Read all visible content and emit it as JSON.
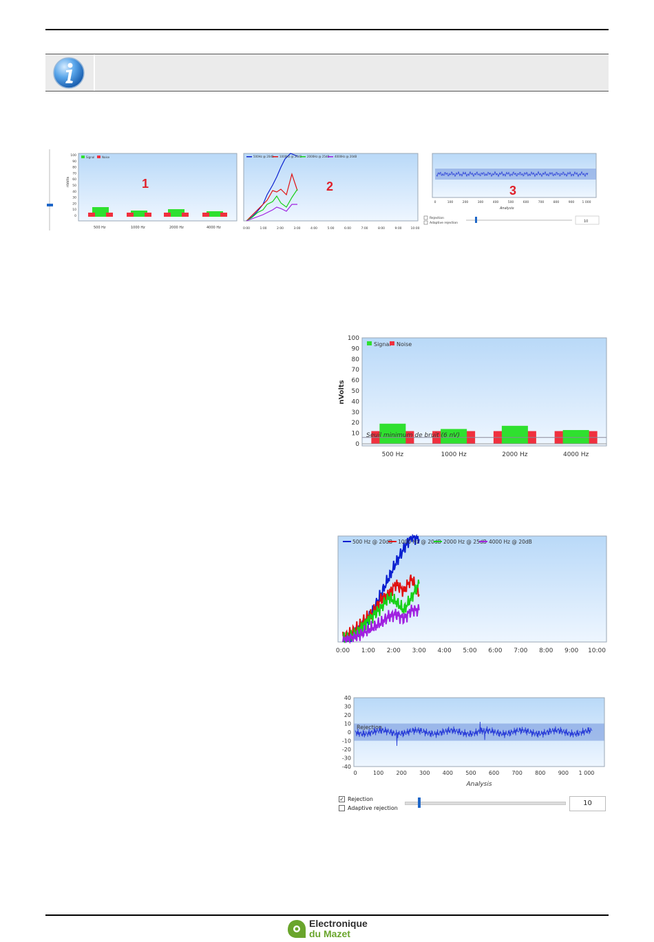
{
  "logo": {
    "line1": "Electronique",
    "line2": "du Mazet",
    "brand_color": "#6aa52c",
    "icon": "ear-wave-logo-icon"
  },
  "info_note": {
    "icon": "info-icon",
    "text": ""
  },
  "overview_labels": {
    "panel1": "1",
    "panel2": "2",
    "panel3": "3",
    "color": "#e0202a"
  },
  "bar_chart": {
    "type": "bar",
    "ylabel": "nVolts",
    "ylim": [
      0,
      100
    ],
    "yticks": [
      "0",
      "10",
      "20",
      "30",
      "40",
      "50",
      "60",
      "70",
      "80",
      "90",
      "100"
    ],
    "categories": [
      "500 Hz",
      "1000 Hz",
      "2000 Hz",
      "4000 Hz"
    ],
    "series": [
      {
        "name": "Signal",
        "color": "#2fe02f",
        "values": [
          19,
          14,
          17,
          13
        ]
      },
      {
        "name": "Noise",
        "color": "#f0303e",
        "values": [
          12,
          12,
          12,
          12
        ]
      }
    ],
    "threshold": {
      "label": "Seuil minimum de bruit (6 nV)",
      "value": 6
    },
    "legend": "top-left"
  },
  "line_chart": {
    "type": "line",
    "xticks": [
      "0:00",
      "1:00",
      "2:00",
      "3:00",
      "4:00",
      "5:00",
      "6:00",
      "7:00",
      "8:00",
      "9:00",
      "10:00"
    ],
    "xlim": [
      0,
      10
    ],
    "ylim": [
      0,
      100
    ],
    "legend": "top-left",
    "series": [
      {
        "name": "500 Hz @ 20dB",
        "color": "#0a1fd0",
        "points": [
          [
            0,
            3
          ],
          [
            0.3,
            6
          ],
          [
            0.6,
            12
          ],
          [
            0.9,
            18
          ],
          [
            1.2,
            30
          ],
          [
            1.5,
            45
          ],
          [
            1.8,
            60
          ],
          [
            2.1,
            75
          ],
          [
            2.4,
            88
          ],
          [
            2.7,
            100
          ],
          [
            3.0,
            97
          ]
        ]
      },
      {
        "name": "1000 Hz @ 20dB",
        "color": "#e01010",
        "points": [
          [
            0,
            4
          ],
          [
            0.3,
            8
          ],
          [
            0.6,
            14
          ],
          [
            0.9,
            22
          ],
          [
            1.2,
            28
          ],
          [
            1.5,
            40
          ],
          [
            1.8,
            45
          ],
          [
            2.1,
            55
          ],
          [
            2.4,
            48
          ],
          [
            2.7,
            60
          ],
          [
            3.0,
            45
          ]
        ]
      },
      {
        "name": "2000 Hz @ 25dB",
        "color": "#18d018",
        "points": [
          [
            0,
            2
          ],
          [
            0.3,
            5
          ],
          [
            0.6,
            10
          ],
          [
            0.9,
            18
          ],
          [
            1.2,
            25
          ],
          [
            1.5,
            32
          ],
          [
            1.8,
            42
          ],
          [
            2.1,
            38
          ],
          [
            2.4,
            30
          ],
          [
            2.7,
            42
          ],
          [
            3.0,
            55
          ]
        ]
      },
      {
        "name": "4000 Hz @ 20dB",
        "color": "#a020e0",
        "points": [
          [
            0,
            1
          ],
          [
            0.3,
            3
          ],
          [
            0.6,
            6
          ],
          [
            0.9,
            10
          ],
          [
            1.2,
            14
          ],
          [
            1.5,
            18
          ],
          [
            1.8,
            24
          ],
          [
            2.1,
            26
          ],
          [
            2.4,
            22
          ],
          [
            2.7,
            30
          ],
          [
            3.0,
            30
          ]
        ]
      }
    ]
  },
  "noise_chart": {
    "type": "line",
    "xlabel": "Analysis",
    "xticks": [
      "0",
      "100",
      "200",
      "300",
      "400",
      "500",
      "600",
      "700",
      "800",
      "900",
      "1 000"
    ],
    "xlim": [
      0,
      1024
    ],
    "yticks": [
      "40",
      "30",
      "20",
      "10",
      "0",
      "-10",
      "-20",
      "-30",
      "-40"
    ],
    "ylim": [
      -40,
      40
    ],
    "rejection_band": [
      -10,
      10
    ],
    "rejection_label": "Rejection",
    "color": "#2a3ed8"
  },
  "controls": {
    "rejection_label": "Rejection",
    "rejection_checked": true,
    "adaptive_label": "Adaptive rejection",
    "adaptive_checked": false,
    "slider_value": 0.1,
    "value": "10"
  }
}
